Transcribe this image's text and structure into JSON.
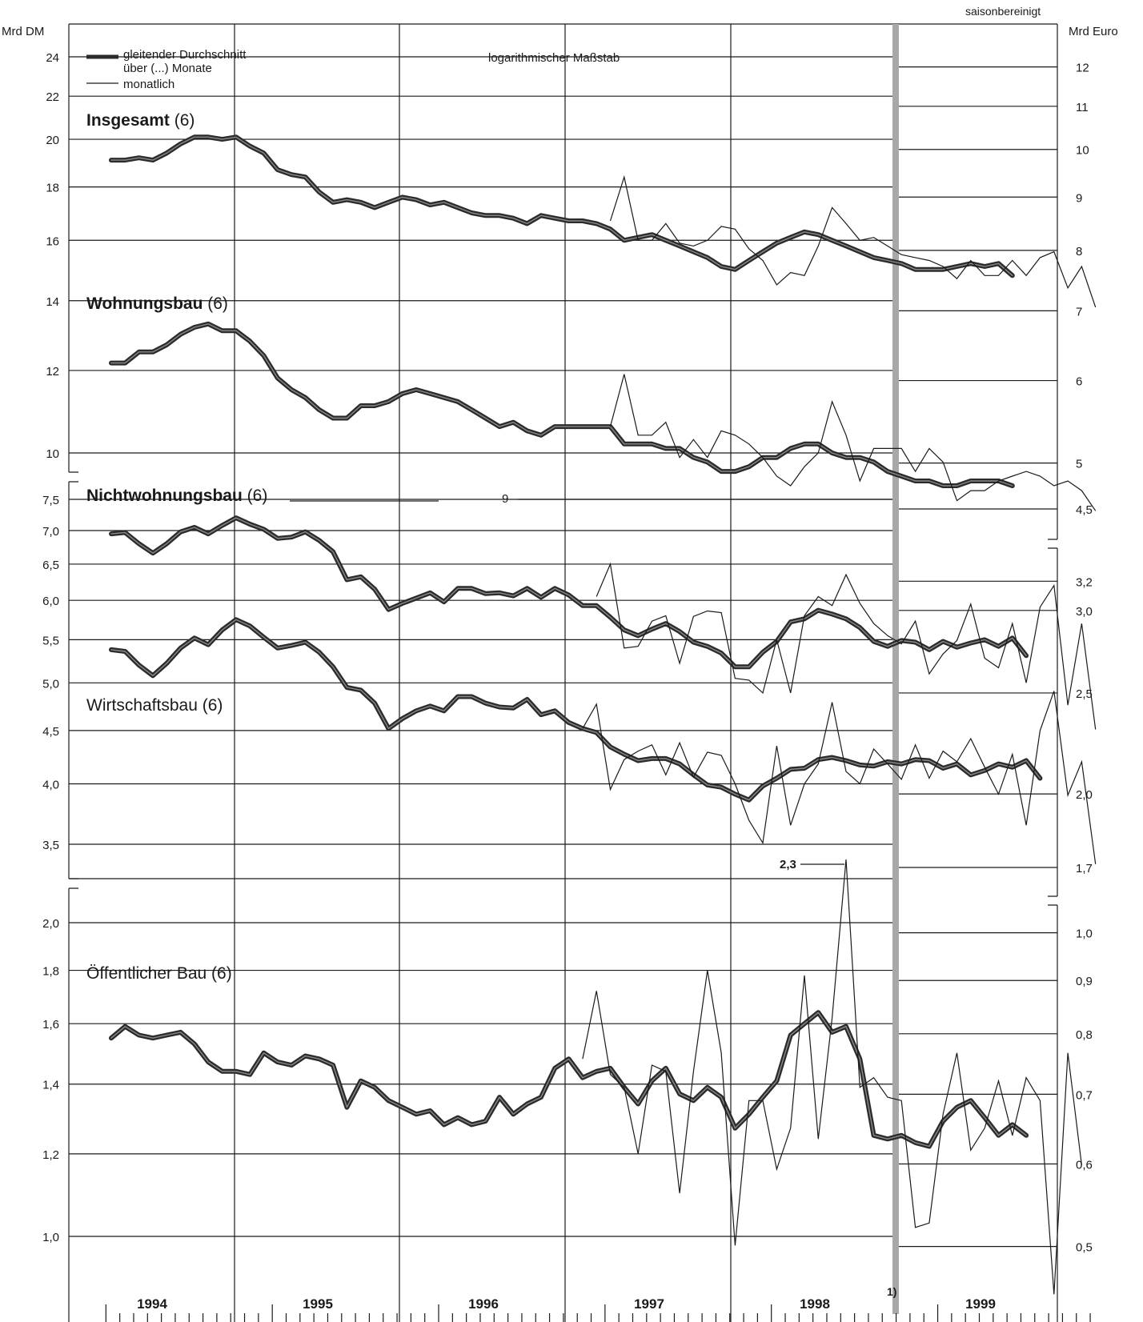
{
  "left_unit": "Mrd DM",
  "right_unit": "Mrd Euro",
  "seasonal_note": "saisonbereinigt",
  "scale_note": "logarithmischer Maßstab",
  "legend": {
    "ma_label_line1": "gleitender Durchschnitt",
    "ma_label_line2": "über (...) Monate",
    "monthly_label": "monatlich"
  },
  "break_footnote": "1)",
  "annotations": {
    "nichtwohnungsbau_offscale": "9",
    "oeffentlich_offscale": "2,3"
  },
  "panels": {
    "top": {
      "title_insgesamt_bold": "Insgesamt",
      "title_insgesamt_rest": " (6)",
      "title_wohnung_bold": "Wohnungsbau",
      "title_wohnung_rest": " (6)"
    },
    "middle": {
      "title_nicht_bold": "Nichtwohnungsbau",
      "title_nicht_rest": " (6)",
      "title_wirtschaft": "Wirtschaftsbau (6)"
    },
    "bottom": {
      "title_oeff": "Öffentlicher Bau (6)"
    }
  },
  "chart_data": [
    {
      "type": "line",
      "title": "Insgesamt (6)",
      "x_start": "1994-01",
      "left_ticks": [
        "14",
        "16",
        "18",
        "20",
        "22",
        "24"
      ],
      "right_ticks": [
        "7",
        "8",
        "9",
        "10",
        "11",
        "12"
      ],
      "series": [
        {
          "name": "gleitender Durchschnitt",
          "start_index": 0,
          "values": [
            19.1,
            19.1,
            19.2,
            19.1,
            19.4,
            19.8,
            20.1,
            20.1,
            20.0,
            20.1,
            19.7,
            19.4,
            18.7,
            18.5,
            18.4,
            17.8,
            17.4,
            17.5,
            17.4,
            17.2,
            17.4,
            17.6,
            17.5,
            17.3,
            17.4,
            17.2,
            17.0,
            16.9,
            16.9,
            16.8,
            16.6,
            16.9,
            16.8,
            16.7,
            16.7,
            16.6,
            16.4,
            16.0,
            16.1,
            16.2,
            16.0,
            15.8,
            15.6,
            15.4,
            15.1,
            15.0,
            15.3,
            15.6,
            15.9,
            16.1,
            16.3,
            16.2,
            16.0,
            15.8,
            15.6,
            15.4,
            15.3,
            15.2,
            15.0,
            15.0,
            15.0,
            15.1,
            15.2,
            15.1,
            15.2,
            14.8
          ]
        },
        {
          "name": "monatlich",
          "start_index": 36,
          "values": [
            16.7,
            18.4,
            16.0,
            16.0,
            16.6,
            15.9,
            15.8,
            16.0,
            16.5,
            16.4,
            15.7,
            15.3,
            14.5,
            14.9,
            14.8,
            15.8,
            17.2,
            16.6,
            16.0,
            16.1,
            15.8,
            15.5,
            15.4,
            15.3,
            15.1,
            14.7,
            15.3,
            14.8,
            14.8,
            15.3,
            14.8,
            15.4,
            15.6,
            14.4,
            15.1,
            13.8
          ]
        }
      ]
    },
    {
      "type": "line",
      "title": "Wohnungsbau (6)",
      "x_start": "1994-01",
      "left_ticks": [
        "10",
        "12"
      ],
      "right_ticks": [
        "5",
        "6"
      ],
      "series": [
        {
          "name": "gleitender Durchschnitt",
          "start_index": 0,
          "values": [
            12.2,
            12.2,
            12.5,
            12.5,
            12.7,
            13.0,
            13.2,
            13.3,
            13.1,
            13.1,
            12.8,
            12.4,
            11.8,
            11.5,
            11.3,
            11.0,
            10.8,
            10.8,
            11.1,
            11.1,
            11.2,
            11.4,
            11.5,
            11.4,
            11.3,
            11.2,
            11.0,
            10.8,
            10.6,
            10.7,
            10.5,
            10.4,
            10.6,
            10.6,
            10.6,
            10.6,
            10.6,
            10.2,
            10.2,
            10.2,
            10.1,
            10.1,
            9.9,
            9.8,
            9.6,
            9.6,
            9.7,
            9.9,
            9.9,
            10.1,
            10.2,
            10.2,
            10.0,
            9.9,
            9.9,
            9.8,
            9.6,
            9.5,
            9.4,
            9.4,
            9.3,
            9.3,
            9.4,
            9.4,
            9.4,
            9.3
          ]
        },
        {
          "name": "monatlich",
          "start_index": 36,
          "values": [
            10.6,
            11.9,
            10.4,
            10.4,
            10.7,
            9.9,
            10.3,
            9.9,
            10.5,
            10.4,
            10.2,
            9.9,
            9.5,
            9.3,
            9.7,
            10.0,
            11.2,
            10.4,
            9.4,
            10.1,
            10.1,
            10.1,
            9.6,
            10.1,
            9.8,
            9.0,
            9.2,
            9.2,
            9.4,
            9.5,
            9.6,
            9.5,
            9.3,
            9.4,
            9.2,
            8.8
          ]
        }
      ]
    },
    {
      "type": "line",
      "title": "Nichtwohnungsbau (6)",
      "x_start": "1994-01",
      "left_ticks": [
        "3,5",
        "4,0",
        "4,5",
        "5,0",
        "5,5",
        "6,0",
        "6,5",
        "7,0",
        "7,5"
      ],
      "right_ticks": [
        "1,7",
        "2,0",
        "2,5",
        "3,0",
        "3,2",
        "4,5"
      ],
      "series": [
        {
          "name": "gleitender Durchschnitt",
          "start_index": 0,
          "values": [
            6.95,
            6.97,
            6.8,
            6.66,
            6.8,
            6.98,
            7.05,
            6.95,
            7.08,
            7.2,
            7.1,
            7.02,
            6.88,
            6.9,
            6.98,
            6.85,
            6.68,
            6.28,
            6.32,
            6.15,
            5.88,
            5.96,
            6.03,
            6.1,
            5.98,
            6.16,
            6.16,
            6.09,
            6.1,
            6.06,
            6.16,
            6.04,
            6.16,
            6.07,
            5.93,
            5.93,
            5.78,
            5.62,
            5.55,
            5.63,
            5.7,
            5.6,
            5.47,
            5.42,
            5.34,
            5.18,
            5.18,
            5.35,
            5.48,
            5.72,
            5.76,
            5.87,
            5.82,
            5.76,
            5.65,
            5.48,
            5.42,
            5.49,
            5.47,
            5.38,
            5.48,
            5.41,
            5.46,
            5.5,
            5.42,
            5.52,
            5.31
          ]
        },
        {
          "name": "monatlich",
          "start_index": 35,
          "values": [
            6.05,
            6.5,
            5.4,
            5.42,
            5.73,
            5.8,
            5.22,
            5.79,
            5.86,
            5.84,
            5.05,
            5.03,
            4.89,
            5.5,
            4.89,
            5.8,
            6.05,
            5.93,
            6.35,
            5.96,
            5.7,
            5.55,
            5.45,
            5.73,
            5.1,
            5.33,
            5.49,
            5.95,
            5.28,
            5.17,
            5.7,
            5.0,
            5.91,
            6.2,
            4.76,
            5.7,
            4.51
          ]
        }
      ]
    },
    {
      "type": "line",
      "title": "Wirtschaftsbau (6)",
      "x_start": "1994-01",
      "series": [
        {
          "name": "gleitender Durchschnitt",
          "start_index": 0,
          "values": [
            5.38,
            5.36,
            5.2,
            5.08,
            5.22,
            5.4,
            5.52,
            5.44,
            5.62,
            5.75,
            5.67,
            5.53,
            5.4,
            5.43,
            5.47,
            5.35,
            5.18,
            4.95,
            4.92,
            4.78,
            4.52,
            4.62,
            4.7,
            4.75,
            4.7,
            4.85,
            4.85,
            4.78,
            4.74,
            4.73,
            4.82,
            4.66,
            4.7,
            4.58,
            4.52,
            4.48,
            4.34,
            4.27,
            4.21,
            4.23,
            4.23,
            4.18,
            4.08,
            3.99,
            3.97,
            3.91,
            3.86,
            3.98,
            4.05,
            4.13,
            4.14,
            4.22,
            4.24,
            4.21,
            4.17,
            4.16,
            4.2,
            4.18,
            4.22,
            4.21,
            4.14,
            4.18,
            4.08,
            4.12,
            4.18,
            4.15,
            4.21,
            4.05
          ]
        },
        {
          "name": "monatlich",
          "start_index": 34,
          "values": [
            4.52,
            4.77,
            3.95,
            4.22,
            4.3,
            4.36,
            4.08,
            4.38,
            4.06,
            4.29,
            4.26,
            4.0,
            3.69,
            3.51,
            4.35,
            3.65,
            4.0,
            4.18,
            4.79,
            4.11,
            4.0,
            4.32,
            4.18,
            4.04,
            4.36,
            4.05,
            4.3,
            4.2,
            4.42,
            4.15,
            3.91,
            4.27,
            3.65,
            4.5,
            4.91,
            3.9,
            4.2,
            3.35
          ]
        }
      ]
    },
    {
      "type": "line",
      "title": "Öffentlicher Bau (6)",
      "x_start": "1994-01",
      "left_ticks": [
        "1,0",
        "1,2",
        "1,4",
        "1,6",
        "1,8",
        "2,0"
      ],
      "right_ticks": [
        "0,5",
        "0,6",
        "0,7",
        "0,8",
        "0,9",
        "1,0"
      ],
      "series": [
        {
          "name": "gleitender Durchschnitt",
          "start_index": 0,
          "values": [
            1.55,
            1.59,
            1.56,
            1.55,
            1.56,
            1.57,
            1.53,
            1.47,
            1.44,
            1.44,
            1.43,
            1.5,
            1.47,
            1.46,
            1.49,
            1.48,
            1.46,
            1.33,
            1.41,
            1.39,
            1.35,
            1.33,
            1.31,
            1.32,
            1.28,
            1.3,
            1.28,
            1.29,
            1.36,
            1.31,
            1.34,
            1.36,
            1.45,
            1.48,
            1.42,
            1.44,
            1.45,
            1.39,
            1.34,
            1.41,
            1.45,
            1.37,
            1.35,
            1.39,
            1.36,
            1.27,
            1.31,
            1.36,
            1.41,
            1.56,
            1.6,
            1.64,
            1.57,
            1.59,
            1.48,
            1.25,
            1.24,
            1.25,
            1.23,
            1.22,
            1.29,
            1.33,
            1.35,
            1.3,
            1.25,
            1.28,
            1.25
          ]
        },
        {
          "name": "monatlich",
          "start_index": 34,
          "values": [
            1.48,
            1.72,
            1.43,
            1.39,
            1.2,
            1.46,
            1.44,
            1.1,
            1.44,
            1.8,
            1.5,
            0.98,
            1.35,
            1.35,
            1.16,
            1.27,
            1.78,
            1.24,
            1.62,
            2.3,
            1.39,
            1.42,
            1.36,
            1.35,
            1.02,
            1.03,
            1.31,
            1.5,
            1.21,
            1.27,
            1.41,
            1.25,
            1.42,
            1.35,
            0.88,
            1.5,
            1.17
          ]
        }
      ]
    }
  ],
  "x_axis": {
    "years": [
      "1994",
      "1995",
      "1996",
      "1997",
      "1998",
      "1999"
    ]
  }
}
